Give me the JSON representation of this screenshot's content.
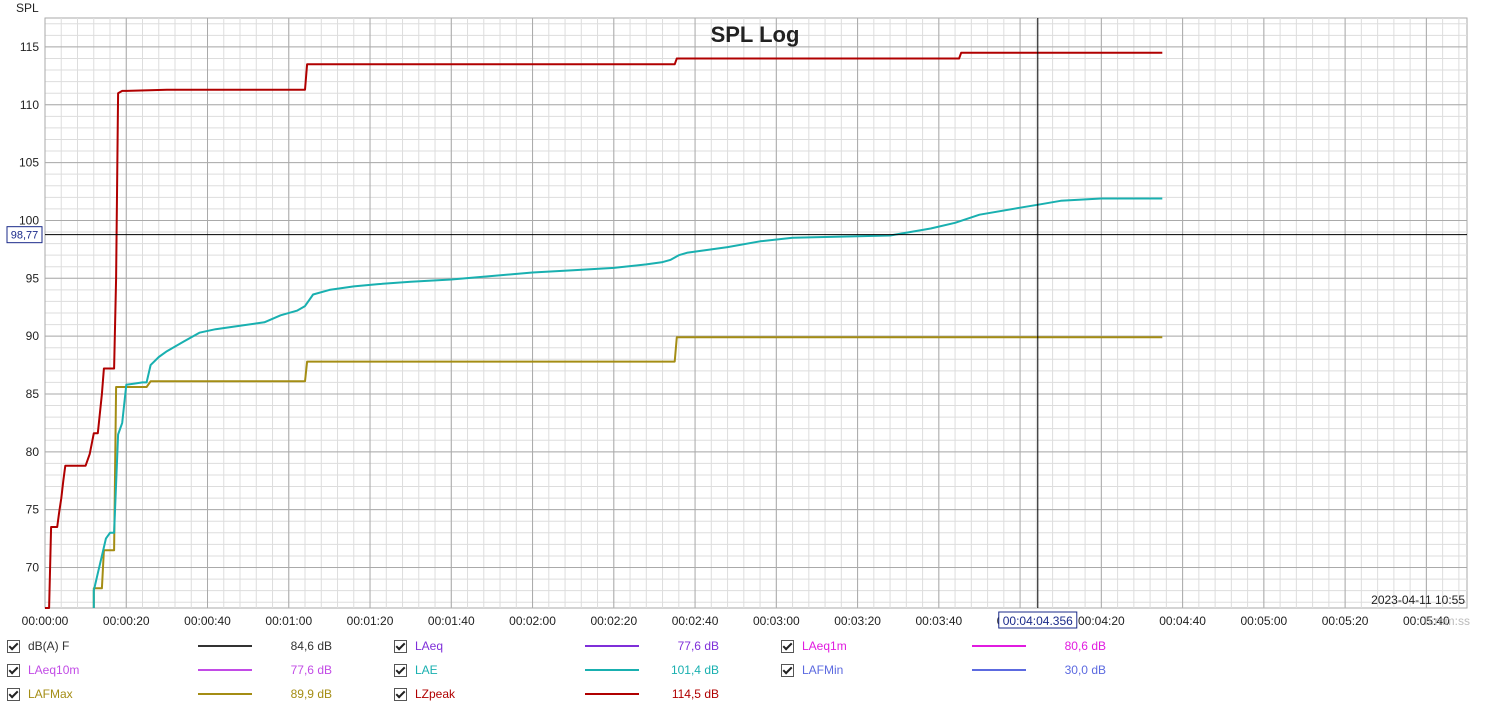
{
  "chart_data": {
    "type": "line",
    "title": "SPL Log",
    "ylabel": "SPL",
    "x_unit_label": "h:mm:ss",
    "timestamp": "2023-04-11 10:55",
    "cursor": {
      "x_label": "00:04:04.356",
      "y_label": "98,77",
      "x": 244.356,
      "y": 98.77
    },
    "xlim": [
      0,
      350
    ],
    "ylim": [
      66.5,
      117.5
    ],
    "x_ticks": [
      0,
      20,
      40,
      60,
      80,
      100,
      120,
      140,
      160,
      180,
      200,
      220,
      240,
      260,
      280,
      300,
      320,
      340
    ],
    "x_tick_labels": [
      "00:00:00",
      "00:00:20",
      "00:00:40",
      "00:01:00",
      "00:01:20",
      "00:01:40",
      "00:02:00",
      "00:02:20",
      "00:02:40",
      "00:03:00",
      "00:03:20",
      "00:03:40",
      "00:04:00",
      "00:04:20",
      "00:04:40",
      "00:05:00",
      "00:05:20",
      "00:05:40"
    ],
    "y_ticks": [
      70,
      75,
      80,
      85,
      90,
      95,
      100,
      105,
      110,
      115
    ],
    "y_tick_labels": [
      "70",
      "75",
      "80",
      "85",
      "90",
      "95",
      "100",
      "105",
      "110",
      "115"
    ],
    "grid": true,
    "series": [
      {
        "name": "LZpeak",
        "color": "#b00000",
        "x": [
          0,
          1,
          1.5,
          3,
          3.5,
          4,
          4.5,
          5,
          6,
          7,
          7.5,
          8,
          10,
          11,
          12,
          13,
          14,
          14.5,
          15,
          16,
          17,
          17.5,
          18,
          19,
          20,
          30,
          50,
          64,
          64.5,
          70,
          100,
          155,
          155.5,
          180,
          225,
          225.5,
          245,
          275
        ],
        "y": [
          66.5,
          66.5,
          73.5,
          73.5,
          74.8,
          76,
          77.5,
          78.8,
          78.8,
          78.8,
          78.8,
          78.8,
          78.8,
          79.8,
          81.6,
          81.6,
          85,
          87.2,
          87.2,
          87.2,
          87.2,
          95,
          111,
          111.2,
          111.2,
          111.3,
          111.3,
          111.3,
          113.5,
          113.5,
          113.5,
          113.5,
          114,
          114,
          114,
          114.5,
          114.5,
          114.5
        ]
      },
      {
        "name": "LAFMax",
        "color": "#a48d14",
        "x": [
          12,
          12,
          14,
          14.5,
          17,
          17.5,
          18,
          19,
          20,
          25,
          26,
          30,
          40,
          50,
          64,
          64.5,
          80,
          100,
          130,
          155,
          155.5,
          200,
          275
        ],
        "y": [
          66.5,
          68.2,
          68.2,
          71.5,
          71.5,
          85.6,
          85.6,
          85.6,
          85.6,
          85.6,
          86.1,
          86.1,
          86.1,
          86.1,
          86.1,
          87.8,
          87.8,
          87.8,
          87.8,
          87.8,
          89.9,
          89.9,
          89.9
        ]
      },
      {
        "name": "LAE",
        "color": "#19b0b0",
        "x": [
          12,
          12,
          13,
          14,
          15,
          16,
          17,
          18,
          19,
          20,
          22,
          24,
          25,
          26,
          28,
          30,
          34,
          38,
          42,
          48,
          54,
          58,
          62,
          64,
          66,
          70,
          76,
          82,
          90,
          100,
          110,
          120,
          130,
          140,
          148,
          152,
          154,
          156,
          158,
          162,
          168,
          176,
          184,
          196,
          208,
          218,
          224,
          230,
          240,
          245,
          250,
          260,
          275
        ],
        "y": [
          66.5,
          68,
          69.5,
          71,
          72.5,
          73,
          73,
          81.5,
          82.5,
          85.8,
          85.9,
          86,
          86,
          87.5,
          88.2,
          88.7,
          89.5,
          90.3,
          90.6,
          90.9,
          91.2,
          91.8,
          92.2,
          92.6,
          93.6,
          94.0,
          94.3,
          94.5,
          94.7,
          94.9,
          95.2,
          95.5,
          95.7,
          95.9,
          96.2,
          96.4,
          96.6,
          97.0,
          97.2,
          97.4,
          97.7,
          98.2,
          98.5,
          98.6,
          98.7,
          99.3,
          99.8,
          100.5,
          101.1,
          101.4,
          101.7,
          101.9,
          101.9
        ]
      }
    ],
    "legend": [
      {
        "name": "dB(A) F",
        "value": "84,6 dB",
        "color": "#333333",
        "text_color": "#333333"
      },
      {
        "name": "LAeq",
        "value": "77,6 dB",
        "color": "#7f2fd9",
        "text_color": "#7f2fd9"
      },
      {
        "name": "LAeq1m",
        "value": "80,6 dB",
        "color": "#e11be0",
        "text_color": "#e11be0"
      },
      {
        "name": "LAeq10m",
        "value": "77,6 dB",
        "color": "#c24be6",
        "text_color": "#c24be6"
      },
      {
        "name": "LAE",
        "value": "101,4 dB",
        "color": "#19b0b0",
        "text_color": "#19b0b0"
      },
      {
        "name": "LAFMin",
        "value": "30,0 dB",
        "color": "#5c6ae0",
        "text_color": "#5c6ae0"
      },
      {
        "name": "LAFMax",
        "value": "89,9 dB",
        "color": "#a48d14",
        "text_color": "#a48d14"
      },
      {
        "name": "LZpeak",
        "value": "114,5 dB",
        "color": "#b00000",
        "text_color": "#b00000"
      }
    ]
  }
}
